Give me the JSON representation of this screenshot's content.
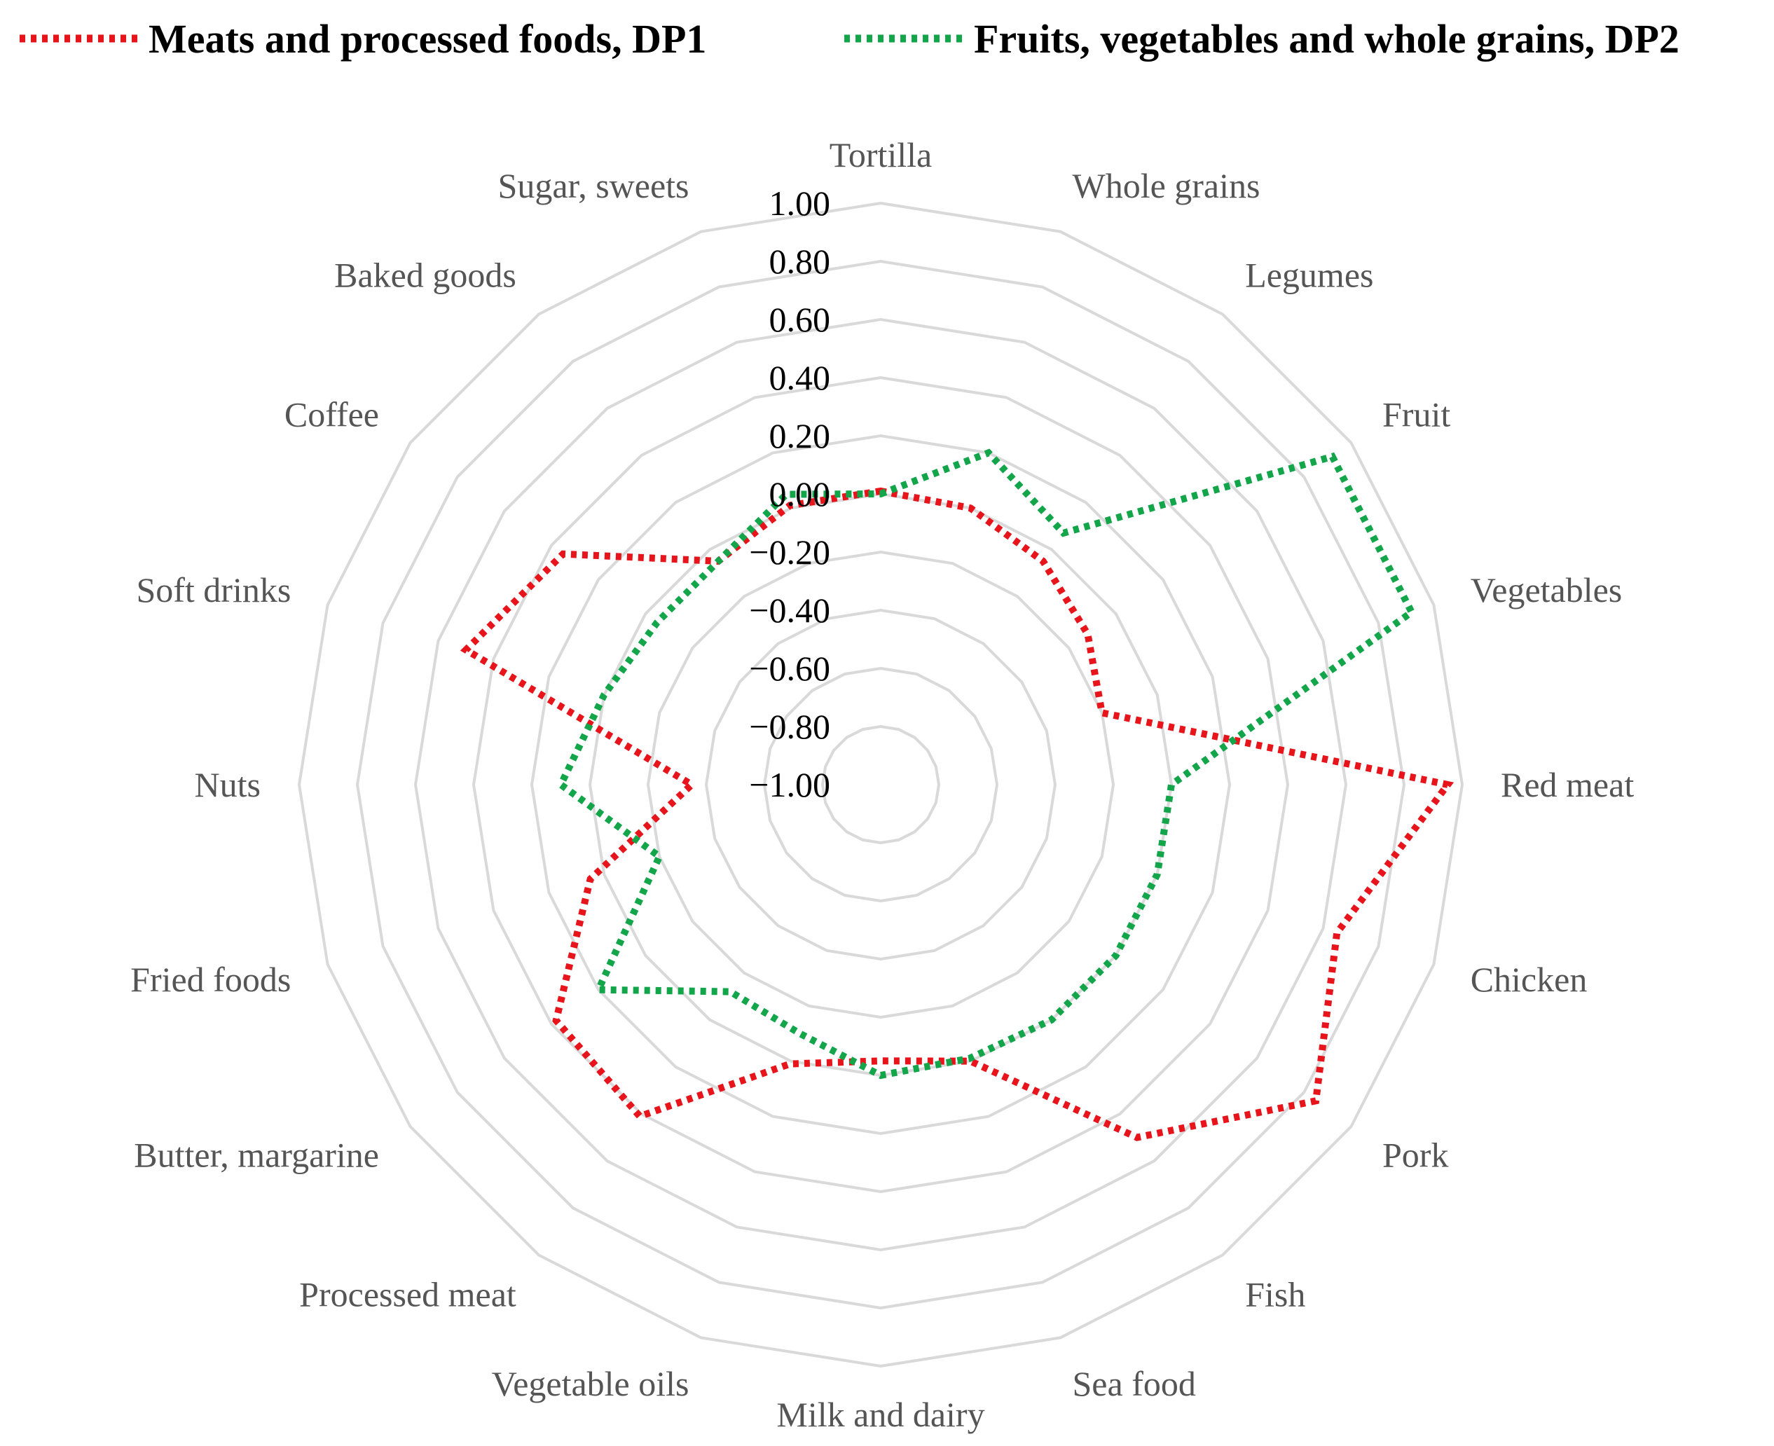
{
  "chart_data": {
    "type": "radar",
    "title": "",
    "legend_position": "top",
    "categories": [
      "Tortilla",
      "Whole grains",
      "Legumes",
      "Fruit",
      "Vegetables",
      "Red meat",
      "Chicken",
      "Pork",
      "Fish",
      "Sea food",
      "Milk and dairy",
      "Vegetable oils",
      "Processed meat",
      "Butter, margarine",
      "Fried foods",
      "Nuts",
      "Soft drinks",
      "Coffee",
      "Baked goods",
      "Sugar, sweets"
    ],
    "r_range": [
      -1.0,
      1.0
    ],
    "ticks": [
      1.0,
      0.8,
      0.6,
      0.4,
      0.2,
      0.0,
      -0.2,
      -0.4,
      -0.6,
      -0.8,
      -1.0
    ],
    "tick_labels": [
      "1.00",
      "0.80",
      "0.60",
      "0.40",
      "0.20",
      "0.00",
      "−0.20",
      "−0.40",
      "−0.60",
      "−0.80",
      "−1.00"
    ],
    "grid": true,
    "series": [
      {
        "name": "Meats and processed foods, DP1",
        "color": "#e8141c",
        "dash": "dotted",
        "values": [
          0.01,
          0.0,
          -0.05,
          -0.12,
          -0.2,
          0.95,
          0.65,
          0.85,
          0.5,
          0.0,
          -0.05,
          0.01,
          0.41,
          0.38,
          0.05,
          -0.35,
          0.5,
          0.35,
          -0.05,
          0.01
        ]
      },
      {
        "name": "Fruits, vegetables and whole grains, DP2",
        "color": "#12a54a",
        "dash": "dotted",
        "values": [
          0.0,
          0.2,
          0.07,
          0.92,
          0.92,
          0.0,
          0.0,
          0.0,
          0.0,
          -0.01,
          0.0,
          -0.1,
          -0.12,
          0.2,
          -0.2,
          0.1,
          0.0,
          -0.05,
          -0.05,
          0.05
        ]
      }
    ]
  }
}
